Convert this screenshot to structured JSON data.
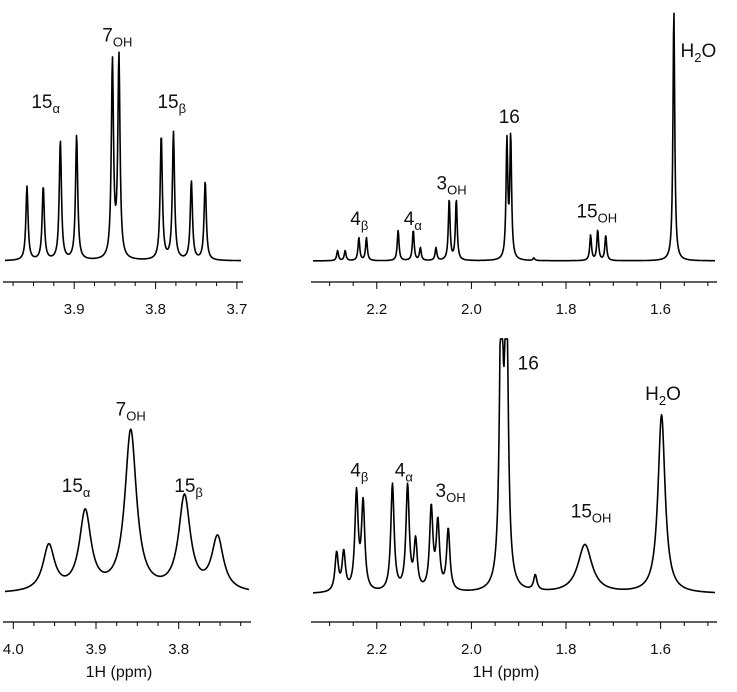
{
  "chart_data": [
    {
      "id": "top_left",
      "type": "line",
      "xlabel": "",
      "xlim": [
        3.985,
        3.695
      ],
      "reversed_x": true,
      "ticks": [
        3.9,
        3.8,
        3.7
      ],
      "tick_labels": [
        "3.9",
        "3.8",
        "3.7"
      ],
      "baseline_intensity": 0.02,
      "width": 0.0016,
      "peaks": [
        {
          "x": 3.958,
          "h": 0.29
        },
        {
          "x": 3.938,
          "h": 0.29
        },
        {
          "x": 3.917,
          "h": 0.47
        },
        {
          "x": 3.897,
          "h": 0.49
        },
        {
          "x": 3.853,
          "h": 0.77
        },
        {
          "x": 3.845,
          "h": 0.79
        },
        {
          "x": 3.793,
          "h": 0.49
        },
        {
          "x": 3.778,
          "h": 0.5
        },
        {
          "x": 3.756,
          "h": 0.31
        },
        {
          "x": 3.739,
          "h": 0.31
        }
      ],
      "labels": [
        {
          "x": 3.935,
          "y": 0.62,
          "main": "15",
          "sub": "α"
        },
        {
          "x": 3.847,
          "y": 0.88,
          "main": "7",
          "sub": "OH"
        },
        {
          "x": 3.78,
          "y": 0.62,
          "main": "15",
          "sub": "β"
        }
      ]
    },
    {
      "id": "top_right",
      "type": "line",
      "xlabel": "",
      "xlim": [
        2.335,
        1.485
      ],
      "reversed_x": true,
      "ticks": [
        2.2,
        2.0,
        1.8,
        1.6
      ],
      "tick_labels": [
        "2.2",
        "2.0",
        "1.8",
        "1.6"
      ],
      "baseline_intensity": 0.02,
      "width": 0.0022,
      "peaks": [
        {
          "x": 2.283,
          "h": 0.04
        },
        {
          "x": 2.267,
          "h": 0.04
        },
        {
          "x": 2.238,
          "h": 0.09
        },
        {
          "x": 2.222,
          "h": 0.09
        },
        {
          "x": 2.155,
          "h": 0.12
        },
        {
          "x": 2.123,
          "h": 0.12
        },
        {
          "x": 2.108,
          "h": 0.05
        },
        {
          "x": 2.075,
          "h": 0.05
        },
        {
          "x": 2.047,
          "h": 0.24
        },
        {
          "x": 2.032,
          "h": 0.24
        },
        {
          "x": 1.925,
          "h": 0.46
        },
        {
          "x": 1.917,
          "h": 0.48
        },
        {
          "x": 1.868,
          "h": 0.01
        },
        {
          "x": 1.748,
          "h": 0.1
        },
        {
          "x": 1.733,
          "h": 0.12
        },
        {
          "x": 1.716,
          "h": 0.1
        },
        {
          "x": 1.572,
          "h": 0.99
        }
      ],
      "labels": [
        {
          "x": 2.237,
          "y": 0.16,
          "main": "4",
          "sub": "β"
        },
        {
          "x": 2.124,
          "y": 0.16,
          "main": "4",
          "sub": "α"
        },
        {
          "x": 2.042,
          "y": 0.3,
          "main": "3",
          "sub": "OH"
        },
        {
          "x": 1.92,
          "y": 0.56,
          "main": "16",
          "sub": ""
        },
        {
          "x": 1.735,
          "y": 0.19,
          "main": "15",
          "sub": "OH"
        },
        {
          "x": 1.52,
          "y": 0.82,
          "main": "H",
          "sub": "2",
          "tail": "O"
        }
      ]
    },
    {
      "id": "bottom_left",
      "type": "line",
      "xlabel": "1H (ppm)",
      "xlim": [
        4.01,
        3.715
      ],
      "reversed_x": true,
      "ticks": [
        4.0,
        3.9,
        3.8
      ],
      "tick_labels": [
        "4.0",
        "3.9",
        "3.8"
      ],
      "baseline_intensity": 0.02,
      "width": 0.0085,
      "peaks": [
        {
          "x": 3.957,
          "h": 0.18
        },
        {
          "x": 3.913,
          "h": 0.31
        },
        {
          "x": 3.858,
          "h": 0.63
        },
        {
          "x": 3.793,
          "h": 0.37
        },
        {
          "x": 3.753,
          "h": 0.21
        }
      ],
      "labels": [
        {
          "x": 3.924,
          "y": 0.42,
          "main": "15",
          "sub": "α"
        },
        {
          "x": 3.858,
          "y": 0.72,
          "main": "7",
          "sub": "OH"
        },
        {
          "x": 3.788,
          "y": 0.42,
          "main": "15",
          "sub": "β"
        }
      ]
    },
    {
      "id": "bottom_right",
      "type": "line",
      "xlabel": "1H (ppm)",
      "xlim": [
        2.335,
        1.485
      ],
      "reversed_x": true,
      "ticks": [
        2.2,
        2.0,
        1.8,
        1.6
      ],
      "tick_labels": [
        "2.2",
        "2.0",
        "1.8",
        "1.6"
      ],
      "baseline_intensity": 0.02,
      "width": 0.0042,
      "peaks": [
        {
          "x": 2.285,
          "h": 0.15
        },
        {
          "x": 2.27,
          "h": 0.15
        },
        {
          "x": 2.243,
          "h": 0.38
        },
        {
          "x": 2.229,
          "h": 0.34
        },
        {
          "x": 2.167,
          "h": 0.42
        },
        {
          "x": 2.135,
          "h": 0.41
        },
        {
          "x": 2.118,
          "h": 0.19
        },
        {
          "x": 2.085,
          "h": 0.32
        },
        {
          "x": 2.071,
          "h": 0.26
        },
        {
          "x": 2.049,
          "h": 0.24
        },
        {
          "x": 1.937,
          "h": 1.2
        },
        {
          "x": 1.926,
          "h": 1.2
        },
        {
          "x": 1.865,
          "h": 0.06
        },
        {
          "x": 1.76,
          "h": 0.19,
          "w": 0.018
        },
        {
          "x": 1.598,
          "h": 0.7,
          "w": 0.009
        }
      ],
      "labels": [
        {
          "x": 2.237,
          "y": 0.48,
          "main": "4",
          "sub": "β"
        },
        {
          "x": 2.143,
          "y": 0.48,
          "main": "4",
          "sub": "α"
        },
        {
          "x": 2.044,
          "y": 0.4,
          "main": "3",
          "sub": "OH"
        },
        {
          "x": 1.88,
          "y": 0.9,
          "main": "16",
          "sub": ""
        },
        {
          "x": 1.747,
          "y": 0.32,
          "main": "15",
          "sub": "OH"
        },
        {
          "x": 1.595,
          "y": 0.78,
          "main": "H",
          "sub": "2",
          "tail": "O"
        }
      ]
    }
  ]
}
